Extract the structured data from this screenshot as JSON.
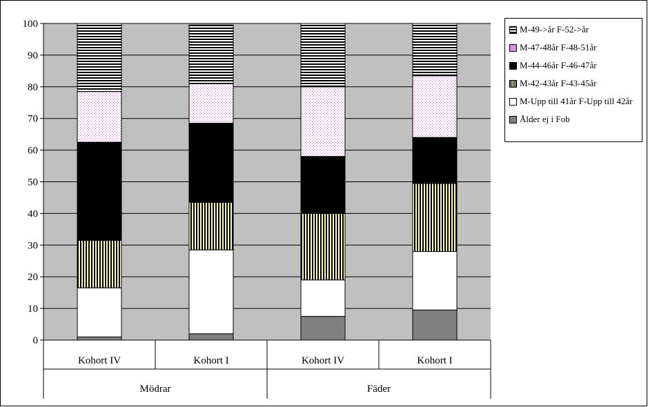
{
  "chart_data": {
    "type": "stacked-bar",
    "title": "",
    "xlabel": "",
    "ylabel": "",
    "ylim": [
      0,
      100
    ],
    "yticks": [
      0,
      10,
      20,
      30,
      40,
      50,
      60,
      70,
      80,
      90,
      100
    ],
    "grid": true,
    "legend_position": "right",
    "groups": [
      {
        "label": "Mödrar",
        "categories": [
          "Kohort IV",
          "Kohort I"
        ]
      },
      {
        "label": "Fäder",
        "categories": [
          "Kohort IV",
          "Kohort I"
        ]
      }
    ],
    "bars": [
      "Kohort IV",
      "Kohort I",
      "Kohort IV",
      "Kohort I"
    ],
    "series": [
      {
        "name": "Ålder ej i Fob",
        "pattern": "solid-gray",
        "color": "#808080",
        "values": [
          1,
          2,
          7.5,
          9.5
        ]
      },
      {
        "name": "M-Upp till 41år F-Upp till 42år",
        "pattern": "white",
        "color": "#ffffff",
        "values": [
          15.5,
          26.5,
          11.5,
          18.5
        ]
      },
      {
        "name": "M-42-43år F-43-45år",
        "pattern": "vertical-stripes",
        "color": "#ffffcc",
        "values": [
          15,
          15,
          21,
          21.5
        ]
      },
      {
        "name": "M-44-46år F-46-47år",
        "pattern": "solid-black",
        "color": "#000000",
        "values": [
          31,
          25,
          18,
          14.5
        ]
      },
      {
        "name": "M-47-48år F-48-51år",
        "pattern": "dots",
        "color": "#cc99cc",
        "values": [
          16,
          12.5,
          22,
          19.5
        ]
      },
      {
        "name": "M-49->år F-52->år",
        "pattern": "horizontal-stripes",
        "color": "#000000",
        "values": [
          21.5,
          18.5,
          20,
          16.5
        ]
      }
    ]
  },
  "colors": {
    "plot_background": "#c0c0c0",
    "gridline": "#000000"
  }
}
